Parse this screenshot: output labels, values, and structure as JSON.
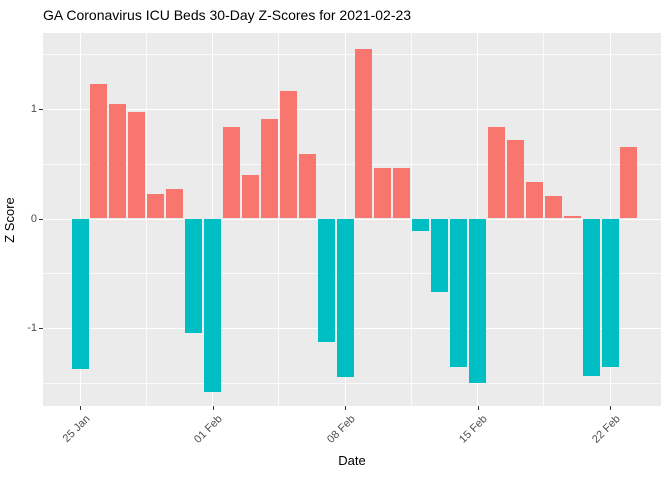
{
  "chart_data": {
    "type": "bar",
    "title": "GA Coronavirus ICU Beds 30-Day Z-Scores for 2021-02-23",
    "xlabel": "Date",
    "ylabel": "Z Score",
    "dates": [
      "2021-01-25",
      "2021-01-26",
      "2021-01-27",
      "2021-01-28",
      "2021-01-29",
      "2021-01-30",
      "2021-01-31",
      "2021-02-01",
      "2021-02-02",
      "2021-02-03",
      "2021-02-04",
      "2021-02-05",
      "2021-02-06",
      "2021-02-07",
      "2021-02-08",
      "2021-02-09",
      "2021-02-10",
      "2021-02-11",
      "2021-02-12",
      "2021-02-13",
      "2021-02-14",
      "2021-02-15",
      "2021-02-16",
      "2021-02-17",
      "2021-02-18",
      "2021-02-19",
      "2021-02-20",
      "2021-02-21",
      "2021-02-22",
      "2021-02-23"
    ],
    "values": [
      -1.37,
      1.23,
      1.05,
      0.97,
      0.22,
      0.27,
      -1.05,
      -1.58,
      0.84,
      0.4,
      0.91,
      1.16,
      0.59,
      -1.13,
      -1.45,
      1.55,
      0.46,
      0.46,
      -0.11,
      -0.67,
      -1.36,
      -1.5,
      0.84,
      0.72,
      0.33,
      0.21,
      0.02,
      -1.44,
      -1.36,
      0.65
    ],
    "bar_colors": {
      "positive": "#F8766D",
      "negative": "#00BFC4"
    },
    "x_ticks": {
      "indices": [
        0,
        7,
        14,
        21,
        28
      ],
      "labels": [
        "25 Jan",
        "01 Feb",
        "08 Feb",
        "15 Feb",
        "22 Feb"
      ]
    },
    "y_ticks": {
      "values": [
        -1,
        0,
        1
      ],
      "labels": [
        "-1",
        "0",
        "1"
      ]
    },
    "y_minor_gridlines": [
      -1.5,
      -0.5,
      0.5,
      1.5
    ],
    "ylim": [
      -1.73,
      1.71
    ],
    "bar_width_ratio": 0.9,
    "panel_background": "#EBEBEB",
    "gridline_color": "#FFFFFF",
    "tick_label_color": "#4D4D4D",
    "text_color": "#000000",
    "grid": "on",
    "legend": "none"
  }
}
